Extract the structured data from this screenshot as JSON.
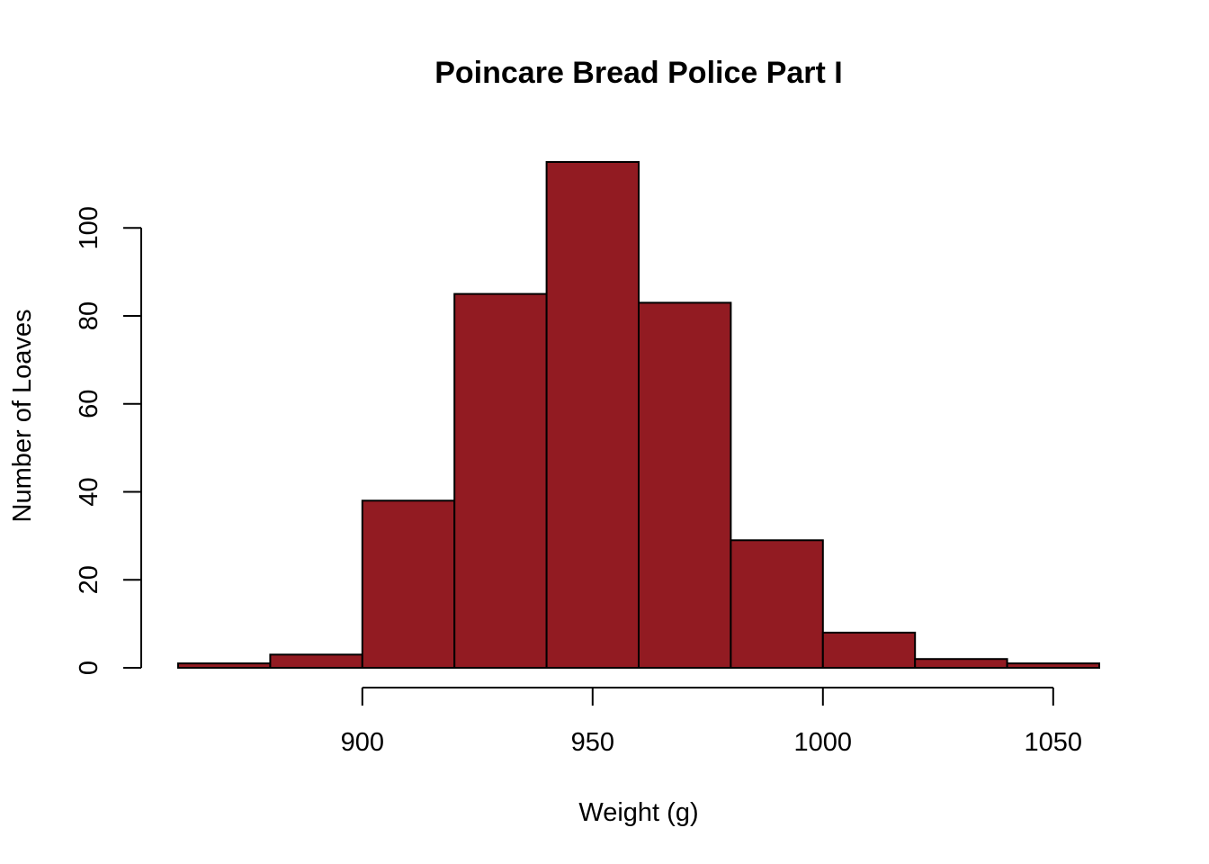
{
  "chart_data": {
    "type": "bar",
    "title": "Poincare Bread Police Part I",
    "xlabel": "Weight (g)",
    "ylabel": "Number of Loaves",
    "bin_edges": [
      860,
      880,
      900,
      920,
      940,
      960,
      980,
      1000,
      1020,
      1040,
      1060
    ],
    "values": [
      1,
      3,
      38,
      85,
      115,
      83,
      29,
      8,
      2,
      1
    ],
    "xlim": [
      860,
      1060
    ],
    "ylim": [
      0,
      115
    ],
    "x_ticks": [
      900,
      950,
      1000,
      1050
    ],
    "x_tick_labels": [
      "900",
      "950",
      "1000",
      "1050"
    ],
    "y_ticks": [
      0,
      20,
      40,
      60,
      80,
      100
    ],
    "y_tick_labels": [
      "0",
      "20",
      "40",
      "60",
      "80",
      "100"
    ],
    "grid": false,
    "bar_color": "#921b22"
  }
}
